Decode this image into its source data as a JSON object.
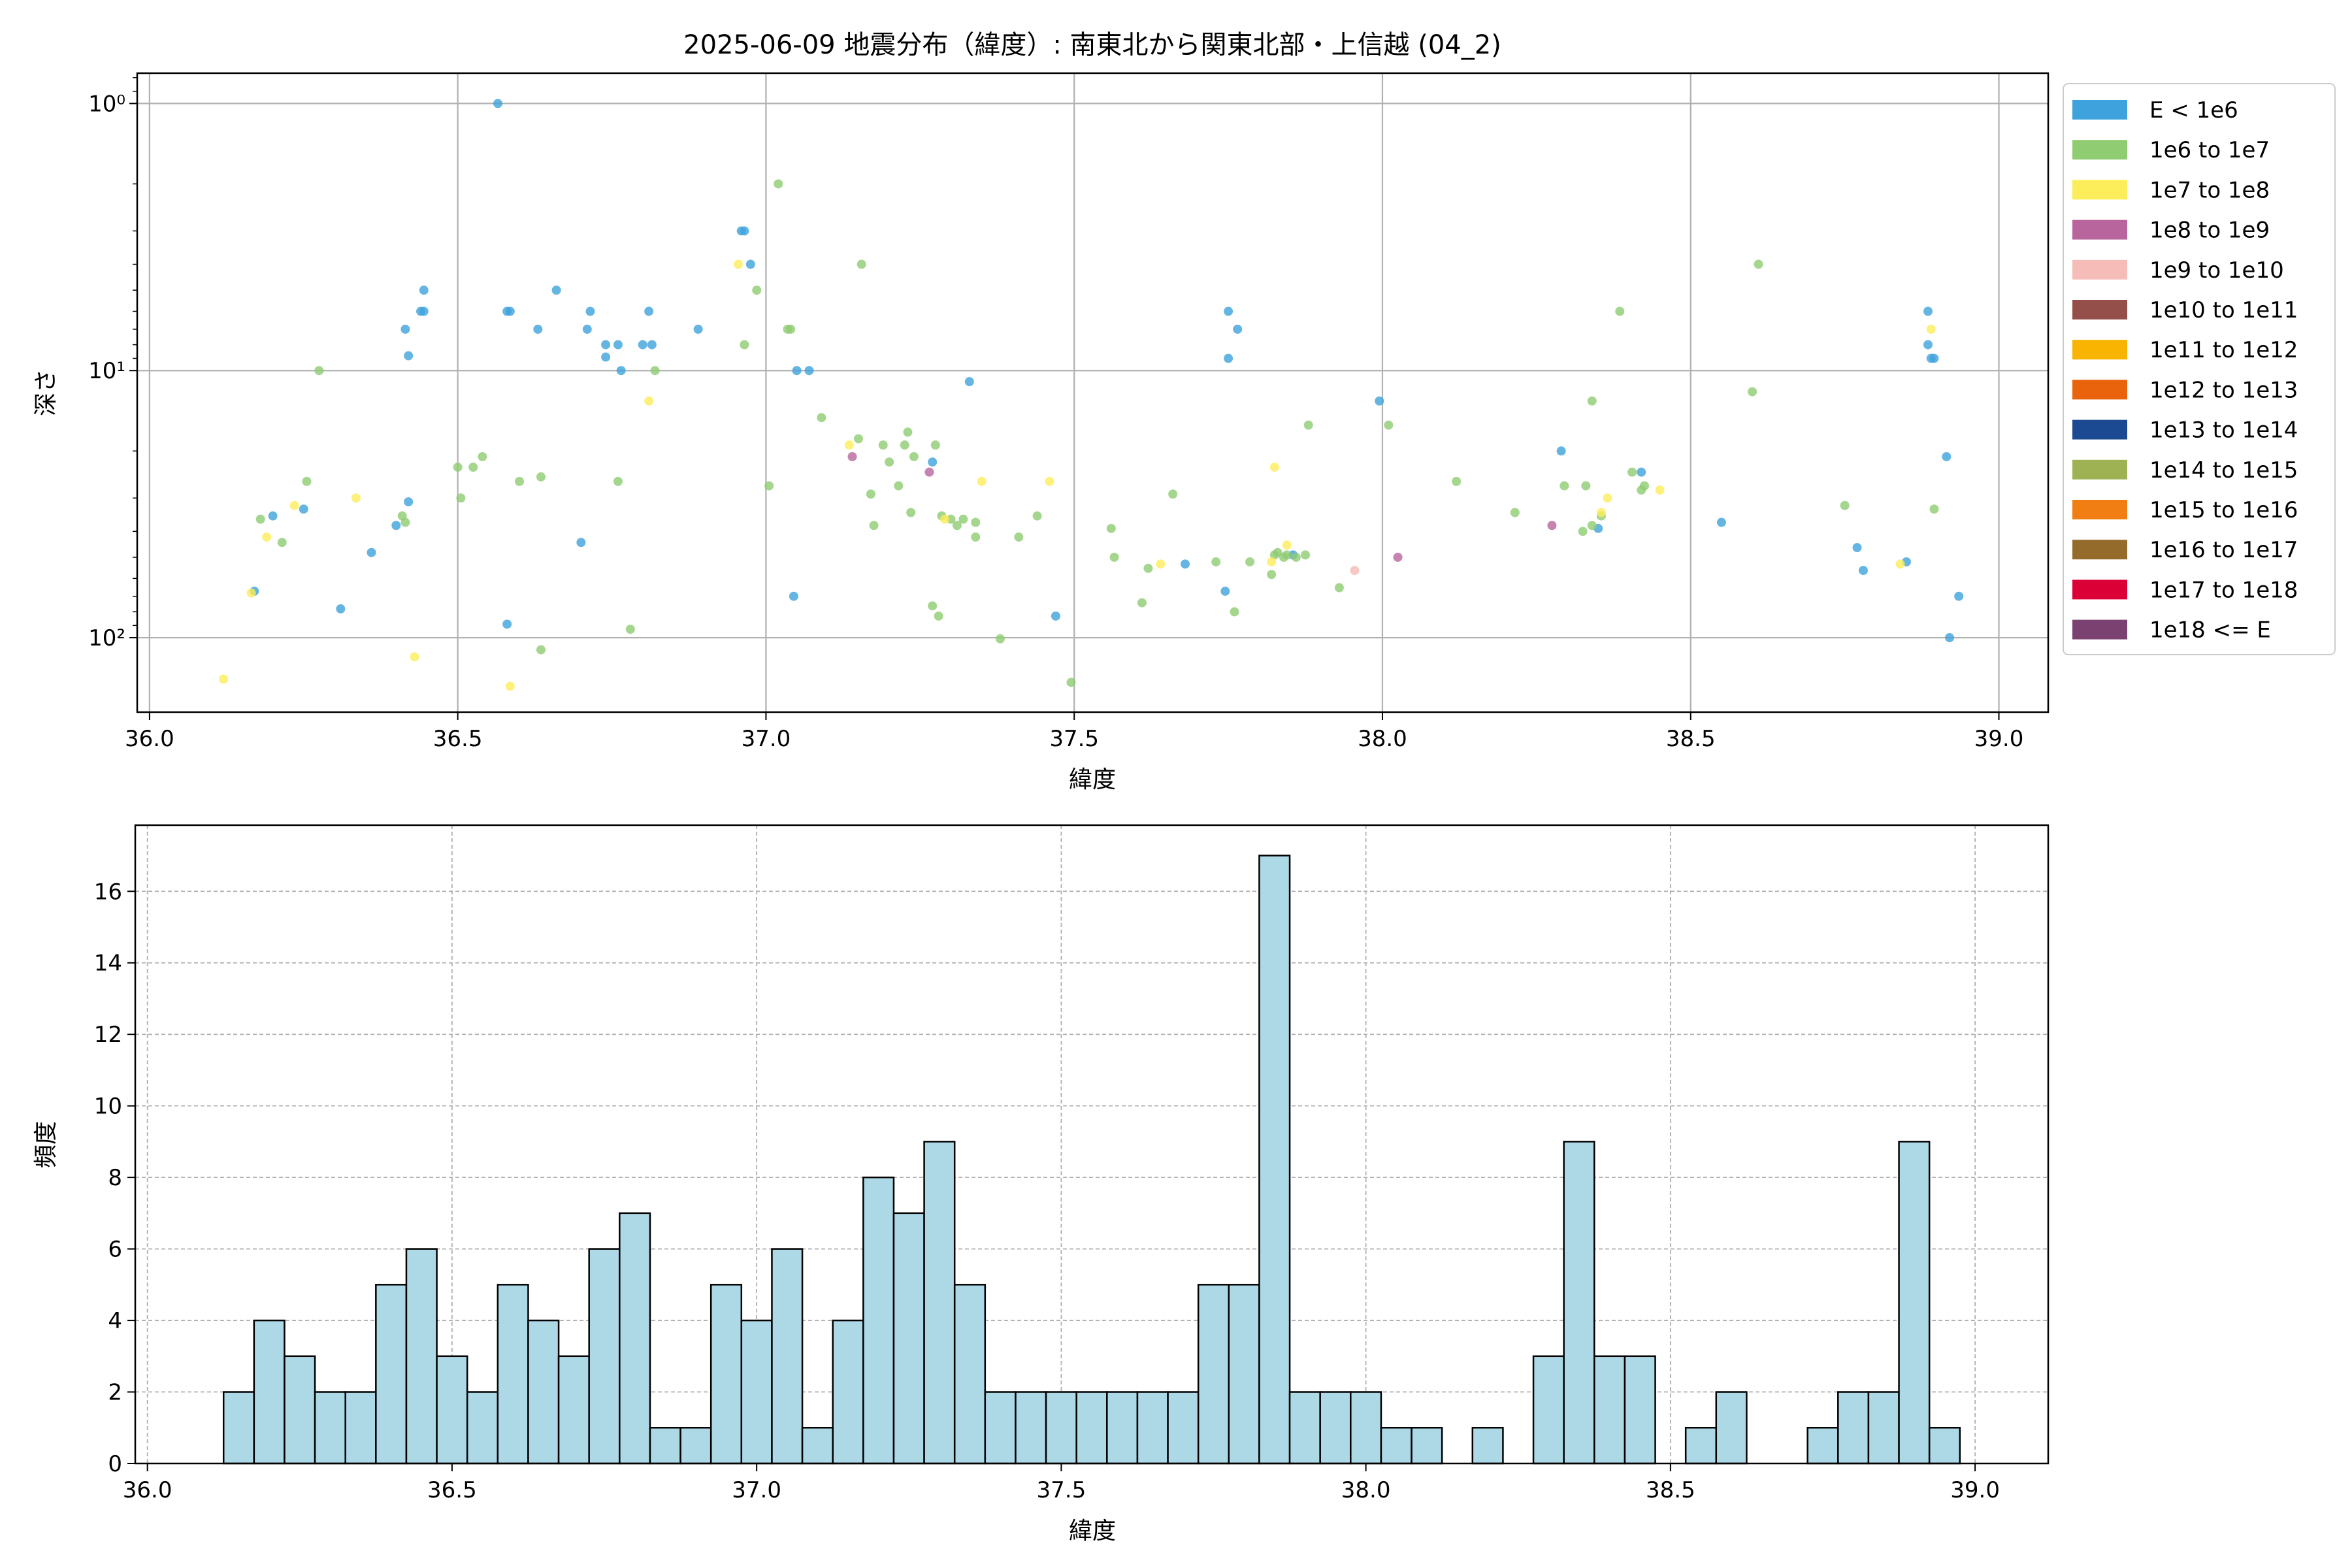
{
  "chart_data": [
    {
      "type": "scatter",
      "title": "2025-06-09 地震分布（緯度）: 南東北から関東北部・上信越 (04_2)",
      "xlabel": "緯度",
      "ylabel": "深さ",
      "xlim": [
        35.98,
        39.08
      ],
      "ylim": [
        0.77,
        190
      ],
      "y_scale": "log-inverted",
      "xticks": [
        "36.0",
        "36.5",
        "37.0",
        "37.5",
        "38.0",
        "38.5",
        "39.0"
      ],
      "yticks": [
        {
          "value": 1,
          "label": "10⁰"
        },
        {
          "value": 10,
          "label": "10¹"
        },
        {
          "value": 100,
          "label": "10²"
        }
      ],
      "grid": true,
      "legend_position": "outside-right",
      "legend": [
        {
          "label": "E < 1e6",
          "color": "#3ea3dc"
        },
        {
          "label": "1e6 to 1e7",
          "color": "#8fcc72"
        },
        {
          "label": "1e7 to 1e8",
          "color": "#fcee5a"
        },
        {
          "label": "1e8 to 1e9",
          "color": "#b8659e"
        },
        {
          "label": "1e9 to 1e10",
          "color": "#f5bcb8"
        },
        {
          "label": "1e10 to 1e11",
          "color": "#944f4a"
        },
        {
          "label": "1e11 to 1e12",
          "color": "#f8b400"
        },
        {
          "label": "1e12 to 1e13",
          "color": "#e9620c"
        },
        {
          "label": "1e13 to 1e14",
          "color": "#1c4a92"
        },
        {
          "label": "1e14 to 1e15",
          "color": "#9fb253"
        },
        {
          "label": "1e15 to 1e16",
          "color": "#f17e12"
        },
        {
          "label": "1e16 to 1e17",
          "color": "#946b2a"
        },
        {
          "label": "1e17 to 1e18",
          "color": "#db0036"
        },
        {
          "label": "1e18 <= E",
          "color": "#7b4171"
        }
      ],
      "points": [
        [
          36.565,
          1.0,
          0
        ],
        [
          36.17,
          67,
          0
        ],
        [
          36.2,
          35,
          0
        ],
        [
          36.25,
          33,
          0
        ],
        [
          36.31,
          78,
          0
        ],
        [
          36.36,
          48,
          0
        ],
        [
          36.4,
          38,
          0
        ],
        [
          36.42,
          31,
          0
        ],
        [
          36.415,
          7,
          0
        ],
        [
          36.42,
          8.8,
          0
        ],
        [
          36.44,
          6,
          0
        ],
        [
          36.445,
          6,
          0
        ],
        [
          36.445,
          5,
          0
        ],
        [
          36.58,
          6,
          0
        ],
        [
          36.585,
          6,
          0
        ],
        [
          36.58,
          89,
          0
        ],
        [
          36.63,
          7,
          0
        ],
        [
          36.66,
          5,
          0
        ],
        [
          36.7,
          44,
          0
        ],
        [
          36.71,
          7,
          0
        ],
        [
          36.715,
          6,
          0
        ],
        [
          36.74,
          8,
          0
        ],
        [
          36.74,
          8.9,
          0
        ],
        [
          36.76,
          8,
          0
        ],
        [
          36.765,
          10,
          0
        ],
        [
          36.8,
          8,
          0
        ],
        [
          36.81,
          6,
          0
        ],
        [
          36.815,
          8,
          0
        ],
        [
          36.89,
          7,
          0
        ],
        [
          36.96,
          3,
          0
        ],
        [
          36.965,
          3,
          0
        ],
        [
          36.975,
          4,
          0
        ],
        [
          37.05,
          10,
          0
        ],
        [
          37.07,
          10,
          0
        ],
        [
          37.045,
          70,
          0
        ],
        [
          37.27,
          22,
          0
        ],
        [
          37.33,
          11,
          0
        ],
        [
          37.47,
          83,
          0
        ],
        [
          37.68,
          53,
          0
        ],
        [
          37.745,
          67,
          0
        ],
        [
          37.75,
          9,
          0
        ],
        [
          37.75,
          6,
          0
        ],
        [
          37.765,
          7,
          0
        ],
        [
          37.855,
          49,
          0
        ],
        [
          37.995,
          13,
          0
        ],
        [
          38.29,
          20,
          0
        ],
        [
          38.35,
          39,
          0
        ],
        [
          38.42,
          24,
          0
        ],
        [
          38.55,
          37,
          0
        ],
        [
          38.77,
          46,
          0
        ],
        [
          38.78,
          56,
          0
        ],
        [
          38.85,
          52,
          0
        ],
        [
          38.885,
          6,
          0
        ],
        [
          38.885,
          8,
          0
        ],
        [
          38.89,
          9,
          0
        ],
        [
          38.895,
          9,
          0
        ],
        [
          38.915,
          21,
          0
        ],
        [
          38.92,
          100,
          0
        ],
        [
          38.935,
          70,
          0
        ],
        [
          36.18,
          36,
          1
        ],
        [
          36.215,
          44,
          1
        ],
        [
          36.255,
          26,
          1
        ],
        [
          36.275,
          10,
          1
        ],
        [
          36.41,
          35,
          1
        ],
        [
          36.415,
          37,
          1
        ],
        [
          36.5,
          23,
          1
        ],
        [
          36.505,
          30,
          1
        ],
        [
          36.525,
          23,
          1
        ],
        [
          36.54,
          21,
          1
        ],
        [
          36.6,
          26,
          1
        ],
        [
          36.635,
          25,
          1
        ],
        [
          36.635,
          111,
          1
        ],
        [
          36.76,
          26,
          1
        ],
        [
          36.78,
          93,
          1
        ],
        [
          36.82,
          10,
          1
        ],
        [
          36.965,
          8,
          1
        ],
        [
          36.985,
          5,
          1
        ],
        [
          37.005,
          27,
          1
        ],
        [
          37.02,
          2,
          1
        ],
        [
          37.035,
          7,
          1
        ],
        [
          37.04,
          7,
          1
        ],
        [
          37.09,
          15,
          1
        ],
        [
          37.15,
          18,
          1
        ],
        [
          37.155,
          4,
          1
        ],
        [
          37.17,
          29,
          1
        ],
        [
          37.175,
          38,
          1
        ],
        [
          37.19,
          19,
          1
        ],
        [
          37.2,
          22,
          1
        ],
        [
          37.215,
          27,
          1
        ],
        [
          37.225,
          19,
          1
        ],
        [
          37.23,
          17,
          1
        ],
        [
          37.235,
          34,
          1
        ],
        [
          37.24,
          21,
          1
        ],
        [
          37.27,
          76,
          1
        ],
        [
          37.275,
          19,
          1
        ],
        [
          37.28,
          83,
          1
        ],
        [
          37.285,
          35,
          1
        ],
        [
          37.3,
          36,
          1
        ],
        [
          37.31,
          38,
          1
        ],
        [
          37.32,
          36,
          1
        ],
        [
          37.34,
          37,
          1
        ],
        [
          37.34,
          42,
          1
        ],
        [
          37.38,
          101,
          1
        ],
        [
          37.41,
          42,
          1
        ],
        [
          37.44,
          35,
          1
        ],
        [
          37.495,
          147,
          1
        ],
        [
          37.56,
          39,
          1
        ],
        [
          37.565,
          50,
          1
        ],
        [
          37.61,
          74,
          1
        ],
        [
          37.62,
          55,
          1
        ],
        [
          37.66,
          29,
          1
        ],
        [
          37.73,
          52,
          1
        ],
        [
          37.76,
          80,
          1
        ],
        [
          37.785,
          52,
          1
        ],
        [
          37.82,
          58,
          1
        ],
        [
          37.825,
          49,
          1
        ],
        [
          37.83,
          48,
          1
        ],
        [
          37.84,
          50,
          1
        ],
        [
          37.845,
          49,
          1
        ],
        [
          37.86,
          50,
          1
        ],
        [
          37.875,
          49,
          1
        ],
        [
          37.88,
          16,
          1
        ],
        [
          37.93,
          65,
          1
        ],
        [
          38.01,
          16,
          1
        ],
        [
          38.12,
          26,
          1
        ],
        [
          38.215,
          34,
          1
        ],
        [
          38.295,
          27,
          1
        ],
        [
          38.325,
          40,
          1
        ],
        [
          38.33,
          27,
          1
        ],
        [
          38.34,
          38,
          1
        ],
        [
          38.34,
          13,
          1
        ],
        [
          38.355,
          35,
          1
        ],
        [
          38.385,
          6,
          1
        ],
        [
          38.405,
          24,
          1
        ],
        [
          38.425,
          27,
          1
        ],
        [
          38.42,
          28,
          1
        ],
        [
          38.6,
          12,
          1
        ],
        [
          38.61,
          4,
          1
        ],
        [
          38.75,
          32,
          1
        ],
        [
          38.895,
          33,
          1
        ],
        [
          36.12,
          143,
          2
        ],
        [
          36.165,
          68,
          2
        ],
        [
          36.19,
          42,
          2
        ],
        [
          36.235,
          32,
          2
        ],
        [
          36.335,
          30,
          2
        ],
        [
          36.43,
          118,
          2
        ],
        [
          36.585,
          152,
          2
        ],
        [
          36.81,
          13,
          2
        ],
        [
          36.955,
          4,
          2
        ],
        [
          37.135,
          19,
          2
        ],
        [
          37.29,
          36,
          2
        ],
        [
          37.35,
          26,
          2
        ],
        [
          37.46,
          26,
          2
        ],
        [
          37.64,
          53,
          2
        ],
        [
          37.82,
          52,
          2
        ],
        [
          37.825,
          23,
          2
        ],
        [
          37.845,
          45,
          2
        ],
        [
          38.355,
          34,
          2
        ],
        [
          38.365,
          30,
          2
        ],
        [
          38.45,
          28,
          2
        ],
        [
          38.84,
          53,
          2
        ],
        [
          38.89,
          7,
          2
        ],
        [
          37.14,
          21,
          3
        ],
        [
          37.265,
          24,
          3
        ],
        [
          38.275,
          38,
          3
        ],
        [
          38.025,
          50,
          3
        ],
        [
          37.955,
          56,
          4
        ]
      ]
    },
    {
      "type": "bar",
      "title": "",
      "xlabel": "緯度",
      "ylabel": "頻度",
      "xlim": [
        35.98,
        39.12
      ],
      "ylim": [
        0,
        17.85
      ],
      "xticks": [
        "36.0",
        "36.5",
        "37.0",
        "37.5",
        "38.0",
        "38.5",
        "39.0"
      ],
      "yticks": [
        "0",
        "2",
        "4",
        "6",
        "8",
        "10",
        "12",
        "14",
        "16"
      ],
      "grid": "dashed",
      "bin_start": 36.125,
      "bin_width": 0.05,
      "bar_color": "#add8e6",
      "values": [
        2,
        4,
        3,
        2,
        2,
        5,
        6,
        3,
        2,
        5,
        4,
        3,
        6,
        7,
        1,
        1,
        5,
        4,
        6,
        1,
        4,
        8,
        7,
        9,
        5,
        2,
        2,
        2,
        2,
        2,
        2,
        2,
        5,
        5,
        17,
        2,
        2,
        2,
        1,
        1,
        0,
        1,
        0,
        3,
        9,
        3,
        3,
        0,
        1,
        2,
        0,
        0,
        1,
        2,
        2,
        9,
        1
      ]
    }
  ]
}
